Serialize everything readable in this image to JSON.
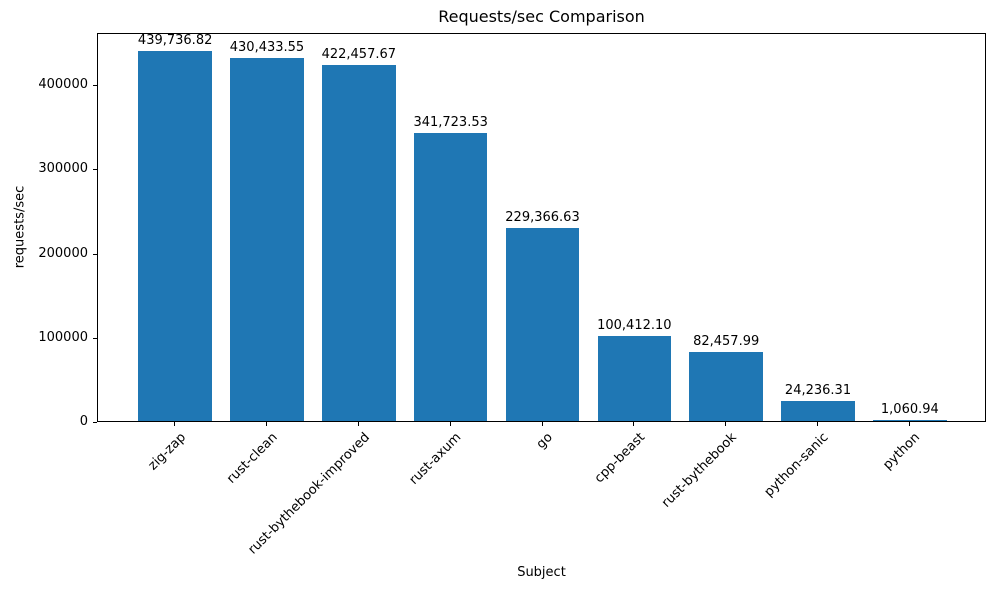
{
  "chart_data": {
    "type": "bar",
    "title": "Requests/sec Comparison",
    "xlabel": "Subject",
    "ylabel": "requests/sec",
    "categories": [
      "zig-zap",
      "rust-clean",
      "rust-bythebook-improved",
      "rust-axum",
      "go",
      "cpp-beast",
      "rust-bythebook",
      "python-sanic",
      "python"
    ],
    "values": [
      439736.82,
      430433.55,
      422457.67,
      341723.53,
      229366.63,
      100412.1,
      82457.99,
      24236.31,
      1060.94
    ],
    "value_labels": [
      "439,736.82",
      "430,433.55",
      "422,457.67",
      "341,723.53",
      "229,366.63",
      "100,412.10",
      "82,457.99",
      "24,236.31",
      "1,060.94"
    ],
    "yticks": [
      0,
      100000,
      200000,
      300000,
      400000
    ],
    "ytick_labels": [
      "0",
      "100000",
      "200000",
      "300000",
      "400000"
    ],
    "ylim": [
      0,
      461724
    ],
    "bar_color": "#1f77b4",
    "background_color": "#ffffff",
    "bar_width_fraction": 0.8,
    "grid": false,
    "legend": null,
    "xtick_rotation_deg": 45
  }
}
